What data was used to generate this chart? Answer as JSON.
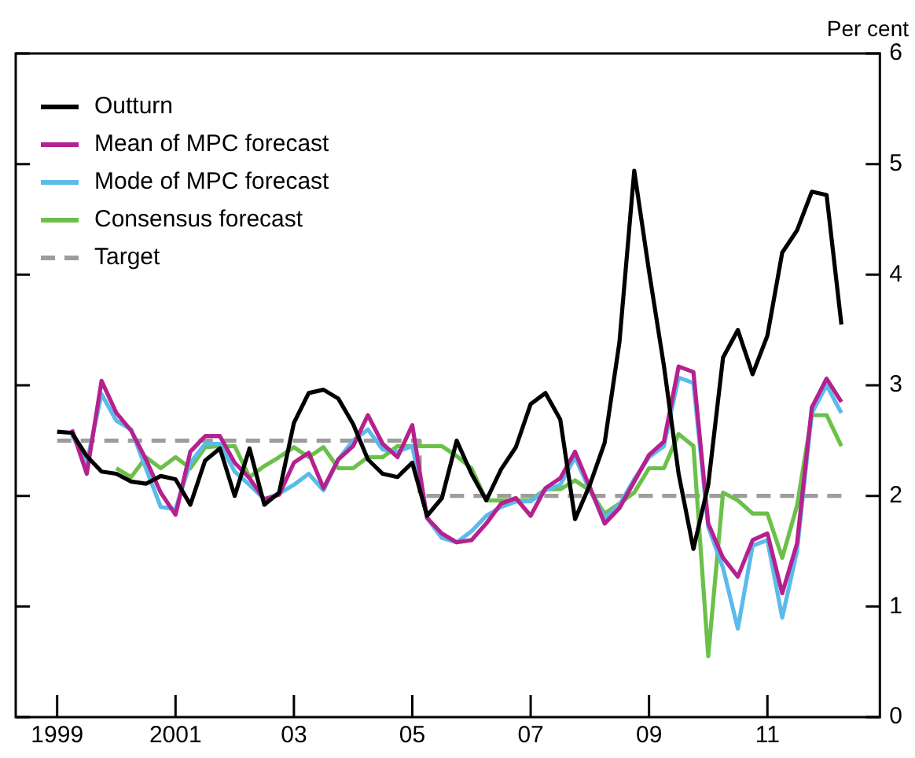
{
  "chart_data": {
    "type": "line",
    "ylabel": "Per cent",
    "x": [
      1999,
      1999.25,
      1999.5,
      1999.75,
      2000,
      2000.25,
      2000.5,
      2000.75,
      2001,
      2001.25,
      2001.5,
      2001.75,
      2002,
      2002.25,
      2002.5,
      2002.75,
      2003,
      2003.25,
      2003.5,
      2003.75,
      2004,
      2004.25,
      2004.5,
      2004.75,
      2005,
      2005.25,
      2005.5,
      2005.75,
      2006,
      2006.25,
      2006.5,
      2006.75,
      2007,
      2007.25,
      2007.5,
      2007.75,
      2008,
      2008.25,
      2008.5,
      2008.75,
      2009,
      2009.25,
      2009.5,
      2009.75,
      2010,
      2010.25,
      2010.5,
      2010.75,
      2011,
      2011.25,
      2011.5,
      2011.75,
      2012,
      2012.25
    ],
    "series": [
      {
        "name": "Outturn",
        "color": "#000000",
        "values": [
          2.58,
          2.57,
          2.36,
          2.22,
          2.2,
          2.13,
          2.11,
          2.18,
          2.15,
          1.92,
          2.32,
          2.43,
          2.0,
          2.43,
          1.92,
          2.03,
          2.66,
          2.93,
          2.96,
          2.88,
          2.65,
          2.33,
          2.2,
          2.17,
          2.3,
          1.82,
          1.98,
          2.5,
          2.2,
          1.96,
          2.24,
          2.44,
          2.83,
          2.93,
          2.69,
          1.79,
          2.1,
          2.48,
          3.39,
          4.94,
          4.03,
          3.18,
          2.2,
          1.52,
          2.1,
          3.25,
          3.5,
          3.1,
          3.45,
          4.2,
          4.4,
          4.75,
          4.72,
          3.55
        ]
      },
      {
        "name": "Mean of MPC forecast",
        "color": "#b5218e",
        "values": [
          null,
          2.6,
          2.2,
          3.04,
          2.75,
          2.59,
          2.33,
          2.03,
          1.83,
          2.4,
          2.54,
          2.54,
          2.3,
          2.16,
          1.97,
          2.01,
          2.3,
          2.39,
          2.07,
          2.33,
          2.45,
          2.73,
          2.47,
          2.35,
          2.64,
          1.8,
          1.66,
          1.58,
          1.6,
          1.75,
          1.93,
          1.98,
          1.82,
          2.07,
          2.16,
          2.4,
          2.08,
          1.75,
          1.89,
          2.13,
          2.37,
          2.49,
          3.17,
          3.12,
          1.75,
          1.44,
          1.27,
          1.6,
          1.66,
          1.12,
          1.57,
          2.8,
          3.06,
          2.85
        ]
      },
      {
        "name": "Mode of MPC forecast",
        "color": "#5bbbea",
        "values": [
          null,
          2.55,
          2.3,
          2.92,
          2.68,
          2.6,
          2.25,
          1.9,
          1.88,
          2.3,
          2.47,
          2.47,
          2.22,
          2.1,
          1.97,
          2.02,
          2.1,
          2.2,
          2.05,
          2.33,
          2.5,
          2.6,
          2.42,
          2.4,
          2.45,
          1.8,
          1.62,
          1.58,
          1.68,
          1.82,
          1.9,
          1.95,
          1.95,
          2.05,
          2.1,
          2.35,
          2.05,
          1.8,
          1.92,
          2.15,
          2.35,
          2.45,
          3.07,
          3.02,
          1.72,
          1.35,
          0.8,
          1.55,
          1.6,
          0.9,
          1.5,
          2.75,
          3.0,
          2.75
        ]
      },
      {
        "name": "Consensus forecast",
        "color": "#6cc04a",
        "values": [
          null,
          null,
          null,
          null,
          2.25,
          2.17,
          2.35,
          2.25,
          2.35,
          2.25,
          2.44,
          2.45,
          2.45,
          2.17,
          2.27,
          2.35,
          2.44,
          2.35,
          2.44,
          2.25,
          2.25,
          2.35,
          2.35,
          2.45,
          2.45,
          2.45,
          2.45,
          2.36,
          2.25,
          1.96,
          1.96,
          1.96,
          1.96,
          2.06,
          2.06,
          2.14,
          2.05,
          1.84,
          1.93,
          2.03,
          2.25,
          2.25,
          2.56,
          2.45,
          0.55,
          2.03,
          1.96,
          1.84,
          1.84,
          1.44,
          1.91,
          2.73,
          2.73,
          2.45
        ]
      },
      {
        "name": "Target",
        "type": "step",
        "color": "#9d9d9d",
        "line_style": "dashed",
        "values": [
          2.5,
          2.5,
          2.5,
          2.5,
          2.5,
          2.5,
          2.5,
          2.5,
          2.5,
          2.5,
          2.5,
          2.5,
          2.5,
          2.5,
          2.5,
          2.5,
          2.5,
          2.5,
          2.5,
          2.5,
          2.5,
          2.5,
          2.5,
          2.5,
          2.5,
          2.0,
          2.0,
          2.0,
          2.0,
          2.0,
          2.0,
          2.0,
          2.0,
          2.0,
          2.0,
          2.0,
          2.0,
          2.0,
          2.0,
          2.0,
          2.0,
          2.0,
          2.0,
          2.0,
          2.0,
          2.0,
          2.0,
          2.0,
          2.0,
          2.0,
          2.0,
          2.0,
          2.0,
          2.0
        ]
      }
    ],
    "xlim": [
      1998.3,
      2012.9
    ],
    "xticks": [
      {
        "value": 1999,
        "label": "1999"
      },
      {
        "value": 2001,
        "label": "2001"
      },
      {
        "value": 2003,
        "label": "03"
      },
      {
        "value": 2005,
        "label": "05"
      },
      {
        "value": 2007,
        "label": "07"
      },
      {
        "value": 2009,
        "label": "09"
      },
      {
        "value": 2011,
        "label": "11"
      }
    ],
    "ylim": [
      0,
      6
    ],
    "yticks": [
      0,
      1,
      2,
      3,
      4,
      5,
      6
    ],
    "grid": false,
    "legend": "top left",
    "marker": "none",
    "line_style": "solid"
  }
}
